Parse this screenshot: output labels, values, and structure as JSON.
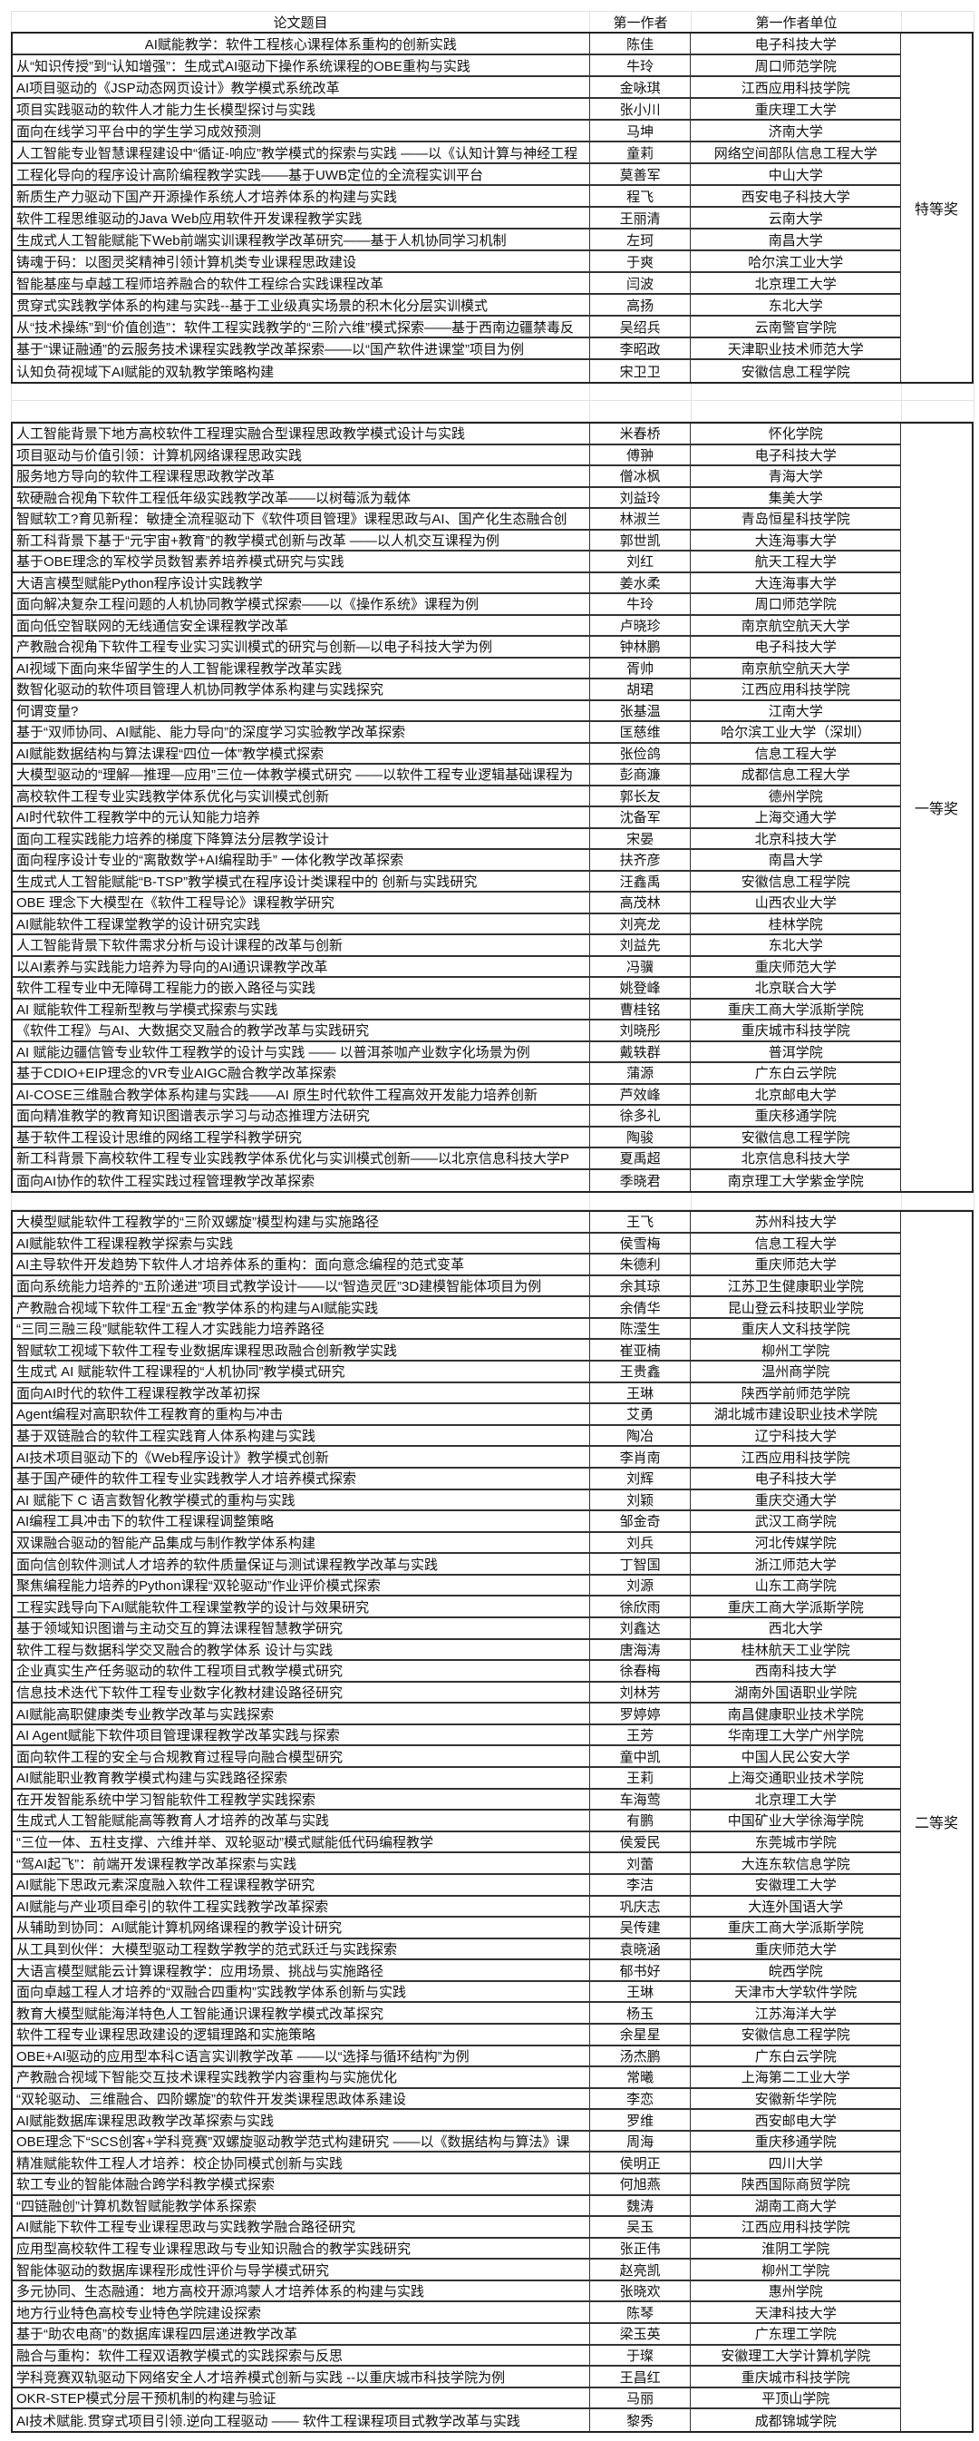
{
  "header": {
    "title": "论文题目",
    "author": "第一作者",
    "unit": "第一作者单位",
    "award": ""
  },
  "sections": [
    {
      "award": "特等奖",
      "rows": [
        [
          "AI赋能教学：软件工程核心课程体系重构的创新实践",
          "陈佳",
          "电子科技大学"
        ],
        [
          "从“知识传授”到“认知增强”：生成式AI驱动下操作系统课程的OBE重构与实践",
          "牛玲",
          "周口师范学院"
        ],
        [
          "AI项目驱动的《JSP动态网页设计》教学模式系统改革",
          "金咏琪",
          "江西应用科技学院"
        ],
        [
          "项目实践驱动的软件人才能力生长模型探讨与实践",
          "张小川",
          "重庆理工大学"
        ],
        [
          "面向在线学习平台中的学生学习成效预测",
          "马坤",
          "济南大学"
        ],
        [
          "人工智能专业智慧课程建设中“循证-响应”教学模式的探索与实践 ——以《认知计算与神经工程",
          "童莉",
          "网络空间部队信息工程大学"
        ],
        [
          "工程化导向的程序设计高阶编程教学实践——基于UWB定位的全流程实训平台",
          "莫善军",
          "中山大学"
        ],
        [
          "新质生产力驱动下国产开源操作系统人才培养体系的构建与实践",
          "程飞",
          "西安电子科技大学"
        ],
        [
          "软件工程思维驱动的Java Web应用软件开发课程教学实践",
          "王丽清",
          "云南大学"
        ],
        [
          "生成式人工智能赋能下Web前端实训课程教学改革研究——基于人机协同学习机制",
          "左珂",
          "南昌大学"
        ],
        [
          "铸魂于码：以图灵奖精神引领计算机类专业课程思政建设",
          "于爽",
          "哈尔滨工业大学"
        ],
        [
          "智能基座与卓越工程师培养融合的软件工程综合实践课程改革",
          "闫波",
          "北京理工大学"
        ],
        [
          "贯穿式实践教学体系的构建与实践--基于工业级真实场景的积木化分层实训模式",
          "高扬",
          "东北大学"
        ],
        [
          "从“技术操练”到“价值创造”：软件工程实践教学的“三阶六维”模式探索——基于西南边疆禁毒反",
          "吴绍兵",
          "云南警官学院"
        ],
        [
          "基于“课证融通”的云服务技术课程实践教学改革探索——以“国产软件进课堂”项目为例",
          "李昭政",
          "天津职业技术师范大学"
        ],
        [
          "认知负荷视域下AI赋能的双轨教学策略构建",
          "宋卫卫",
          "安徽信息工程学院"
        ]
      ]
    },
    {
      "award": "一等奖",
      "rows": [
        [
          "人工智能背景下地方高校软件工程理实融合型课程思政教学模式设计与实践",
          "米春桥",
          "怀化学院"
        ],
        [
          "项目驱动与价值引领：计算机网络课程思政实践",
          "傅翀",
          "电子科技大学"
        ],
        [
          "服务地方导向的软件工程课程思政教学改革",
          "僧冰枫",
          "青海大学"
        ],
        [
          "软硬融合视角下软件工程低年级实践教学改革——以树莓派为载体",
          "刘益玲",
          "集美大学"
        ],
        [
          "智赋软工?育见新程：敏捷全流程驱动下《软件项目管理》课程思政与AI、国产化生态融合创",
          "林淑兰",
          "青岛恒星科技学院"
        ],
        [
          "新工科背景下基于“元宇宙+教育”的教学模式创新与改革 ——以人机交互课程为例",
          "郭世凯",
          "大连海事大学"
        ],
        [
          "基于OBE理念的军校学员数智素养培养模式研究与实践",
          "刘红",
          "航天工程大学"
        ],
        [
          "大语言模型赋能Python程序设计实践教学",
          "姜水柔",
          "大连海事大学"
        ],
        [
          "面向解决复杂工程问题的人机协同教学模式探索——以《操作系统》课程为例",
          "牛玲",
          "周口师范学院"
        ],
        [
          "面向低空智联网的无线通信安全课程教学改革",
          "卢晓珍",
          "南京航空航天大学"
        ],
        [
          "产教融合视角下软件工程专业实习实训模式的研究与创新—以电子科技大学为例",
          "钟林鹏",
          "电子科技大学"
        ],
        [
          "AI视域下面向来华留学生的人工智能课程教学改革实践",
          "胥帅",
          "南京航空航天大学"
        ],
        [
          "数智化驱动的软件项目管理人机协同教学体系构建与实践探究",
          "胡珺",
          "江西应用科技学院"
        ],
        [
          "何谓变量?",
          "张基温",
          "江南大学"
        ],
        [
          "基于“双师协同、AI赋能、能力导向”的深度学习实验教学改革探索",
          "匡慈维",
          "哈尔滨工业大学（深圳）"
        ],
        [
          "AI赋能数据结构与算法课程“四位一体”教学模式探索",
          "张俭鸽",
          "信息工程大学"
        ],
        [
          "大模型驱动的“理解—推理—应用”三位一体教学模式研究 ——以软件工程专业逻辑基础课程为",
          "彭商濂",
          "成都信息工程大学"
        ],
        [
          "高校软件工程专业实践教学体系优化与实训模式创新",
          "郭长友",
          "德州学院"
        ],
        [
          "AI时代软件工程教学中的元认知能力培养",
          "沈备军",
          "上海交通大学"
        ],
        [
          "面向工程实践能力培养的梯度下降算法分层教学设计",
          "宋晏",
          "北京科技大学"
        ],
        [
          "面向程序设计专业的“离散数学+AI编程助手” 一体化教学改革探索",
          "扶齐彦",
          "南昌大学"
        ],
        [
          "生成式人工智能赋能“B-TSP”教学模式在程序设计类课程中的 创新与实践研究",
          "汪鑫禹",
          "安徽信息工程学院"
        ],
        [
          "OBE 理念下大模型在《软件工程导论》课程教学研究",
          "高茂林",
          "山西农业大学"
        ],
        [
          "AI赋能软件工程课堂教学的设计研究实践",
          "刘亮龙",
          "桂林学院"
        ],
        [
          "人工智能背景下软件需求分析与设计课程的改革与创新",
          "刘益先",
          "东北大学"
        ],
        [
          "以AI素养与实践能力培养为导向的AI通识课教学改革",
          "冯骥",
          "重庆师范大学"
        ],
        [
          "软件工程专业中无障碍工程能力的嵌入路径与实践",
          "姚登峰",
          "北京联合大学"
        ],
        [
          "AI 赋能软件工程新型教与学模式探索与实践",
          "曹桂铭",
          "重庆工商大学派斯学院"
        ],
        [
          "《软件工程》与AI、大数据交叉融合的教学改革与实践研究",
          "刘晓彤",
          "重庆城市科技学院"
        ],
        [
          "AI 赋能边疆信管专业软件工程教学的设计与实践 —— 以普洱茶咖产业数字化场景为例",
          "戴轶群",
          "普洱学院"
        ],
        [
          "基于CDIO+EIP理念的VR专业AIGC融合教学改革探索",
          "蒲源",
          "广东白云学院"
        ],
        [
          "AI-COSE三维融合教学体系构建与实践——AI 原生时代软件工程高效开发能力培养创新",
          "芦效峰",
          "北京邮电大学"
        ],
        [
          "面向精准教学的教育知识图谱表示学习与动态推理方法研究",
          "徐多礼",
          "重庆移通学院"
        ],
        [
          "基于软件工程设计思维的网络工程学科教学研究",
          "陶骏",
          "安徽信息工程学院"
        ],
        [
          "新工科背景下高校软件工程专业实践教学体系优化与实训模式创新——以北京信息科技大学P",
          "夏禹超",
          "北京信息科技大学"
        ],
        [
          "面向AI协作的软件工程实践过程管理教学改革探索",
          "季晓君",
          "南京理工大学紫金学院"
        ]
      ]
    },
    {
      "award": "二等奖",
      "rows": [
        [
          "大模型赋能软件工程教学的“三阶双螺旋”模型构建与实施路径",
          "王飞",
          "苏州科技大学"
        ],
        [
          "AI赋能软件工程课程教学探索与实践",
          "侯雪梅",
          "信息工程大学"
        ],
        [
          "AI主导软件开发趋势下软件人才培养体系的重构：面向意念编程的范式变革",
          "朱德利",
          "重庆师范大学"
        ],
        [
          "面向系统能力培养的“五阶递进”项目式教学设计——以“智造灵匠”3D建模智能体项目为例",
          "余其琼",
          "江苏卫生健康职业学院"
        ],
        [
          "产教融合视域下软件工程“五金”教学体系的构建与AI赋能实践",
          "余倩华",
          "昆山登云科技职业学院"
        ],
        [
          "“三同三融三段”赋能软件工程人才实践能力培养路径",
          "陈滢生",
          "重庆人文科技学院"
        ],
        [
          "智赋软工视域下软件工程专业数据库课程思政融合创新教学实践",
          "崔亚楠",
          "柳州工学院"
        ],
        [
          "生成式 AI 赋能软件工程课程的“人机协同”教学模式研究",
          "王贵鑫",
          "温州商学院"
        ],
        [
          "面向AI时代的软件工程课程教学改革初探",
          "王琳",
          "陕西学前师范学院"
        ],
        [
          "Agent编程对高职软件工程教育的重构与冲击",
          "艾勇",
          "湖北城市建设职业技术学院"
        ],
        [
          "基于双链融合的软件工程实践育人体系构建与实践",
          "陶冶",
          "辽宁科技大学"
        ],
        [
          "AI技术项目驱动下的《Web程序设计》教学模式创新",
          "李肖南",
          "江西应用科技学院"
        ],
        [
          "基于国产硬件的软件工程专业实践教学人才培养模式探索",
          "刘辉",
          "电子科技大学"
        ],
        [
          "AI 赋能下 C 语言数智化教学模式的重构与实践",
          "刘颖",
          "重庆交通大学"
        ],
        [
          "AI编程工具冲击下的软件工程课程调整策略",
          "邹金奇",
          "武汉工商学院"
        ],
        [
          "双课融合驱动的智能产品集成与制作教学体系构建",
          "刘兵",
          "河北传媒学院"
        ],
        [
          "面向信创软件测试人才培养的软件质量保证与测试课程教学改革与实践",
          "丁智国",
          "浙江师范大学"
        ],
        [
          "聚焦编程能力培养的Python课程“双轮驱动”作业评价模式探索",
          "刘源",
          "山东工商学院"
        ],
        [
          "工程实践导向下AI赋能软件工程课堂教学的设计与效果研究",
          "徐欣雨",
          "重庆工商大学派斯学院"
        ],
        [
          "基于领域知识图谱与主动交互的算法课程智慧教学研究",
          "刘鑫达",
          "西北大学"
        ],
        [
          "软件工程与数据科学交叉融合的教学体系 设计与实践",
          "唐海涛",
          "桂林航天工业学院"
        ],
        [
          "企业真实生产任务驱动的软件工程项目式教学模式研究",
          "徐春梅",
          "西南科技大学"
        ],
        [
          "信息技术迭代下软件工程专业数字化教材建设路径研究",
          "刘林芳",
          "湖南外国语职业学院"
        ],
        [
          "AI赋能高职健康类专业教学改革与实践探索",
          "罗婷婷",
          "南昌健康职业技术学院"
        ],
        [
          "AI Agent赋能下软件项目管理课程教学改革实践与探索",
          "王芳",
          "华南理工大学广州学院"
        ],
        [
          "面向软件工程的安全与合规教育过程导向融合模型研究",
          "童中凯",
          "中国人民公安大学"
        ],
        [
          "AI赋能职业教育教学模式构建与实践路径探索",
          "王莉",
          "上海交通职业技术学院"
        ],
        [
          "在开发智能系统中学习智能软件工程教学实践探索",
          "车海莺",
          "北京理工大学"
        ],
        [
          "生成式人工智能赋能高等教育人才培养的改革与实践",
          "有鹏",
          "中国矿业大学徐海学院"
        ],
        [
          "“三位一体、五柱支撑、六维并举、双轮驱动”模式赋能低代码编程教学",
          "侯爱民",
          "东莞城市学院"
        ],
        [
          "“驾AI起飞”：前端开发课程教学改革探索与实践",
          "刘蕾",
          "大连东软信息学院"
        ],
        [
          "AI赋能下思政元素深度融入软件工程课程教学研究",
          "李洁",
          "安徽理工大学"
        ],
        [
          "AI赋能与产业项目牵引的软件工程实践教学改革探索",
          "巩庆志",
          "大连外国语大学"
        ],
        [
          "从辅助到协同：AI赋能计算机网络课程的教学设计研究",
          "吴传建",
          "重庆工商大学派斯学院"
        ],
        [
          "从工具到伙伴：大模型驱动工程数学教学的范式跃迁与实践探索",
          "袁晓涵",
          "重庆师范大学"
        ],
        [
          "大语言模型赋能云计算课程教学：应用场景、挑战与实施路径",
          "郁书好",
          "皖西学院"
        ],
        [
          "面向卓越工程人才培养的“双融合四重构”实践教学体系创新与实践",
          "王琳",
          "天津市大学软件学院"
        ],
        [
          "教育大模型赋能海洋特色人工智能通识课程教学模式改革探究",
          "杨玉",
          "江苏海洋大学"
        ],
        [
          "软件工程专业课程思政建设的逻辑理路和实施策略",
          "余星星",
          "安徽信息工程学院"
        ],
        [
          "OBE+AI驱动的应用型本科C语言实训教学改革 ——以“选择与循环结构”为例",
          "汤杰鹏",
          "广东白云学院"
        ],
        [
          "产教融合视域下智能交互技术课程实践教学内容重构与实施优化",
          "常曦",
          "上海第二工业大学"
        ],
        [
          "“双轮驱动、三维融合、四阶螺旋”的软件开发类课程思政体系建设",
          "李恋",
          "安徽新华学院"
        ],
        [
          "AI赋能数据库课程思政教学改革探索与实践",
          "罗维",
          "西安邮电大学"
        ],
        [
          "OBE理念下“SCS创客+学科竞赛”双螺旋驱动教学范式构建研究 ——以《数据结构与算法》课",
          "周海",
          "重庆移通学院"
        ],
        [
          "精准赋能软件工程人才培养：校企协同模式创新与实践",
          "侯明正",
          "四川大学"
        ],
        [
          "软工专业的智能体融合跨学科教学模式探索",
          "何旭燕",
          "陕西国际商贸学院"
        ],
        [
          "“四链融创”计算机数智赋能教学体系探索",
          "魏涛",
          "湖南工商大学"
        ],
        [
          "AI赋能下软件工程专业课程思政与实践教学融合路径研究",
          "吴玉",
          "江西应用科技学院"
        ],
        [
          "应用型高校软件工程专业课程思政与专业知识融合的教学实践研究",
          "张正伟",
          "淮阴工学院"
        ],
        [
          "智能体驱动的数据库课程形成性评价与导学模式研究",
          "赵亮凯",
          "柳州工学院"
        ],
        [
          "多元协同、生态融通：地方高校开源鸿蒙人才培养体系的构建与实践",
          "张晓欢",
          "惠州学院"
        ],
        [
          "地方行业特色高校专业特色学院建设探索",
          "陈琴",
          "天津科技大学"
        ],
        [
          "基于“助农电商”的数据库课程四层递进教学改革",
          "梁玉英",
          "广东理工学院"
        ],
        [
          "融合与重构：软件工程双语教学模式的实践探索与反思",
          "于璨",
          "安徽理工大学计算机学院"
        ],
        [
          "学科竞赛双轨驱动下网络安全人才培养模式创新与实践 --以重庆城市科技学院为例",
          "王昌红",
          "重庆城市科技学院"
        ],
        [
          "OKR-STEP模式分层干预机制的构建与验证",
          "马丽",
          "平顶山学院"
        ],
        [
          "AI技术赋能.贯穿式项目引领.逆向工程驱动 —— 软件工程课程项目式教学改革与实践",
          "黎秀",
          "成都锦城学院"
        ]
      ]
    }
  ]
}
